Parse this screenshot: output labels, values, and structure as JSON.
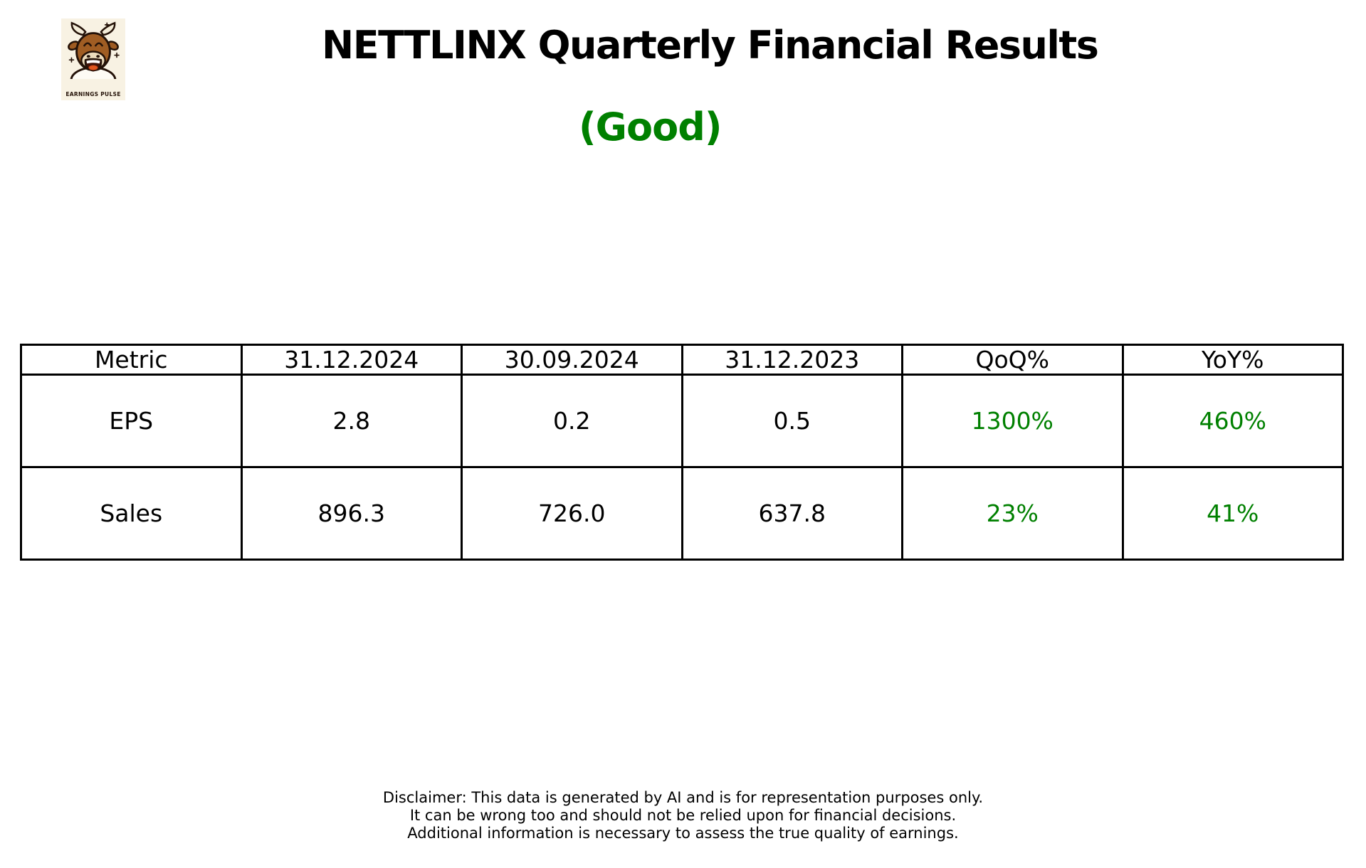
{
  "logo": {
    "brand": "EARNINGS PULSE"
  },
  "header": {
    "title": "NETTLINX Quarterly Financial Results",
    "verdict": "(Good)"
  },
  "colors": {
    "positive": "#008000",
    "text": "#000000",
    "logo_background": "#f8f2e3"
  },
  "chart_data": {
    "type": "table",
    "title": "NETTLINX Quarterly Financial Results",
    "subtitle": "(Good)",
    "columns": [
      "Metric",
      "31.12.2024",
      "30.09.2024",
      "31.12.2023",
      "QoQ%",
      "YoY%"
    ],
    "rows": [
      [
        "EPS",
        "2.8",
        "0.2",
        "0.5",
        "1300%",
        "460%"
      ],
      [
        "Sales",
        "896.3",
        "726.0",
        "637.8",
        "23%",
        "41%"
      ]
    ],
    "positive_change_columns": [
      4,
      5
    ],
    "legend_position": "none",
    "grid": true
  },
  "disclaimer": {
    "lines": [
      "Disclaimer: This data is generated by AI and is for representation purposes only.",
      "It can be wrong too and should not be relied upon for financial decisions.",
      "Additional information is necessary to assess the true quality of earnings."
    ]
  }
}
